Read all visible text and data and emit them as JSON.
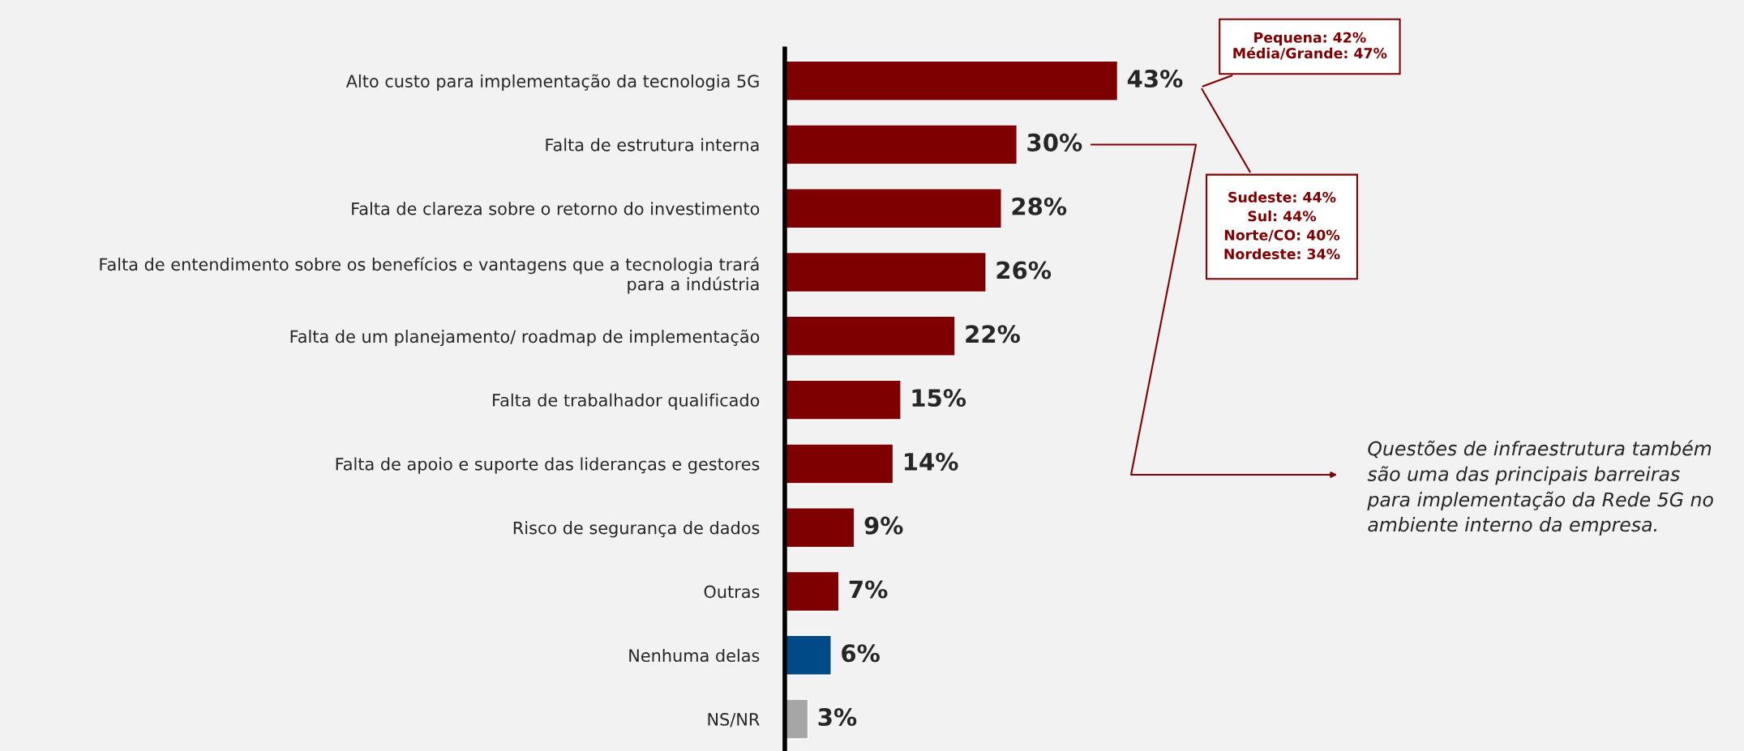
{
  "chart_data": {
    "type": "bar",
    "orientation": "horizontal",
    "categories": [
      "Alto custo para implementação da tecnologia 5G",
      "Falta de estrutura interna",
      "Falta de clareza sobre o retorno do investimento",
      "Falta de entendimento sobre os benefícios e vantagens que a tecnologia trará\npara a indústria",
      "Falta de um planejamento/ roadmap de implementação",
      "Falta de trabalhador qualificado",
      "Falta de apoio e suporte das lideranças e gestores",
      "Risco de segurança de dados",
      "Outras",
      "Nenhuma delas",
      "NS/NR"
    ],
    "values": [
      43,
      30,
      28,
      26,
      22,
      15,
      14,
      9,
      7,
      6,
      3
    ],
    "colors": [
      "#7f0000",
      "#7f0000",
      "#7f0000",
      "#7f0000",
      "#7f0000",
      "#7f0000",
      "#7f0000",
      "#7f0000",
      "#7f0000",
      "#004a87",
      "#a6a6a6"
    ],
    "value_labels": [
      "43%",
      "30%",
      "28%",
      "26%",
      "22%",
      "15%",
      "14%",
      "9%",
      "7%",
      "6%",
      "3%"
    ],
    "annotations": [
      "Pequena: 42%\nMédia/Grande: 47%",
      "Sudeste: 44%\nSul: 44%\nNorte/CO: 40%\nNordeste: 34%",
      "Questões de infraestrutura também\nsão uma das principais barreiras\npara implementação da Rede 5G no\nambiente interno da empresa."
    ]
  }
}
